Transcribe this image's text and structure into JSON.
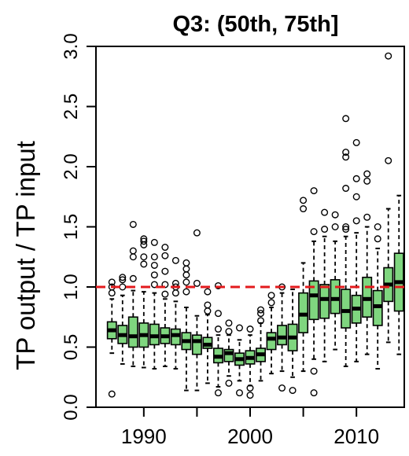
{
  "chart_data": {
    "type": "boxplot",
    "title": "Q3: (50th, 75th]",
    "xlabel": "",
    "ylabel": "TP output / TP input",
    "x_ticks": [
      "1990",
      "2000",
      "2010"
    ],
    "y_ticks": [
      "0.0",
      "0.5",
      "1.0",
      "1.5",
      "2.0",
      "2.5",
      "3.0"
    ],
    "xlim": [
      1985.5,
      2014.5
    ],
    "ylim": [
      0,
      3
    ],
    "reference_line": {
      "y": 1.0,
      "color": "#e31a1c",
      "style": "dashed"
    },
    "box_fill": "#7fd67f",
    "grid": false,
    "boxes": [
      {
        "x": 1987,
        "q1": 0.57,
        "median": 0.64,
        "q3": 0.71,
        "low": 0.45,
        "high": 0.9,
        "outliers": [
          0.11,
          0.95,
          1.0,
          1.04
        ]
      },
      {
        "x": 1988,
        "q1": 0.53,
        "median": 0.6,
        "q3": 0.68,
        "low": 0.36,
        "high": 0.93,
        "outliers": [
          1.0,
          1.06,
          1.08
        ]
      },
      {
        "x": 1989,
        "q1": 0.5,
        "median": 0.59,
        "q3": 0.75,
        "low": 0.34,
        "high": 0.97,
        "outliers": [
          1.07,
          1.25,
          1.3,
          1.52
        ]
      },
      {
        "x": 1990,
        "q1": 0.5,
        "median": 0.6,
        "q3": 0.7,
        "low": 0.33,
        "high": 0.96,
        "outliers": [
          1.19,
          1.25,
          1.35,
          1.38,
          1.4
        ]
      },
      {
        "x": 1991,
        "q1": 0.52,
        "median": 0.59,
        "q3": 0.69,
        "low": 0.32,
        "high": 0.95,
        "outliers": [
          1.02,
          1.1,
          1.18,
          1.25,
          1.37
        ]
      },
      {
        "x": 1992,
        "q1": 0.53,
        "median": 0.59,
        "q3": 0.66,
        "low": 0.34,
        "high": 0.9,
        "outliers": [
          0.94,
          1.02,
          1.13,
          1.26,
          1.33
        ]
      },
      {
        "x": 1993,
        "q1": 0.52,
        "median": 0.6,
        "q3": 0.65,
        "low": 0.32,
        "high": 0.88,
        "outliers": [
          0.95,
          1.0,
          1.03,
          1.22
        ]
      },
      {
        "x": 1994,
        "q1": 0.48,
        "median": 0.55,
        "q3": 0.62,
        "low": 0.14,
        "high": 0.83,
        "outliers": [
          0.96,
          1.04,
          1.1,
          1.15,
          1.2
        ]
      },
      {
        "x": 1995,
        "q1": 0.44,
        "median": 0.55,
        "q3": 0.6,
        "low": 0.14,
        "high": 0.76,
        "outliers": [
          1.03,
          1.45
        ]
      },
      {
        "x": 1996,
        "q1": 0.49,
        "median": 0.52,
        "q3": 0.58,
        "low": 0.2,
        "high": 0.77,
        "outliers": [
          0.8,
          0.85,
          0.96
        ]
      },
      {
        "x": 1997,
        "q1": 0.37,
        "median": 0.42,
        "q3": 0.49,
        "low": 0.17,
        "high": 0.6,
        "outliers": [
          0.12,
          0.65,
          0.78,
          1.01
        ]
      },
      {
        "x": 1998,
        "q1": 0.38,
        "median": 0.45,
        "q3": 0.48,
        "low": 0.26,
        "high": 0.6,
        "outliers": [
          0.2,
          0.63,
          0.7
        ]
      },
      {
        "x": 1999,
        "q1": 0.35,
        "median": 0.4,
        "q3": 0.45,
        "low": 0.22,
        "high": 0.56,
        "outliers": [
          0.12,
          0.66
        ]
      },
      {
        "x": 2000,
        "q1": 0.36,
        "median": 0.41,
        "q3": 0.47,
        "low": 0.18,
        "high": 0.6,
        "outliers": [
          0.1,
          0.16,
          0.65
        ]
      },
      {
        "x": 2001,
        "q1": 0.38,
        "median": 0.44,
        "q3": 0.49,
        "low": 0.22,
        "high": 0.7,
        "outliers": [
          0.72,
          0.78,
          0.81
        ]
      },
      {
        "x": 2002,
        "q1": 0.48,
        "median": 0.57,
        "q3": 0.62,
        "low": 0.28,
        "high": 0.83,
        "outliers": [
          0.87,
          0.93
        ]
      },
      {
        "x": 2003,
        "q1": 0.52,
        "median": 0.58,
        "q3": 0.68,
        "low": 0.3,
        "high": 0.95,
        "outliers": [
          0.16,
          1.0
        ]
      },
      {
        "x": 2004,
        "q1": 0.47,
        "median": 0.58,
        "q3": 0.69,
        "low": 0.25,
        "high": 0.98,
        "outliers": [
          0.14
        ]
      },
      {
        "x": 2005,
        "q1": 0.62,
        "median": 0.77,
        "q3": 0.95,
        "low": 0.3,
        "high": 1.2,
        "outliers": [
          1.65,
          1.72
        ]
      },
      {
        "x": 2006,
        "q1": 0.73,
        "median": 0.93,
        "q3": 1.05,
        "low": 0.4,
        "high": 1.38,
        "outliers": [
          0.12,
          0.3,
          1.46,
          1.8
        ]
      },
      {
        "x": 2007,
        "q1": 0.74,
        "median": 0.9,
        "q3": 1.02,
        "low": 0.38,
        "high": 1.42,
        "outliers": [
          1.48,
          1.62
        ]
      },
      {
        "x": 2008,
        "q1": 0.78,
        "median": 0.9,
        "q3": 1.06,
        "low": 0.48,
        "high": 1.38,
        "outliers": [
          1.5,
          1.6
        ]
      },
      {
        "x": 2009,
        "q1": 0.66,
        "median": 0.8,
        "q3": 0.98,
        "low": 0.34,
        "high": 1.42,
        "outliers": [
          1.48,
          1.5,
          1.82,
          2.08,
          2.12,
          2.4
        ]
      },
      {
        "x": 2010,
        "q1": 0.7,
        "median": 0.82,
        "q3": 0.93,
        "low": 0.38,
        "high": 1.45,
        "outliers": [
          1.55,
          1.75,
          1.9,
          2.2
        ]
      },
      {
        "x": 2011,
        "q1": 0.75,
        "median": 0.9,
        "q3": 1.08,
        "low": 0.44,
        "high": 1.5,
        "outliers": [
          1.58,
          1.88,
          1.94
        ]
      },
      {
        "x": 2012,
        "q1": 0.68,
        "median": 0.84,
        "q3": 0.97,
        "low": 0.32,
        "high": 1.32,
        "outliers": [
          1.4,
          1.5
        ]
      },
      {
        "x": 2013,
        "q1": 0.88,
        "median": 1.02,
        "q3": 1.16,
        "low": 0.54,
        "high": 1.65,
        "outliers": [
          2.05,
          2.92
        ]
      },
      {
        "x": 2014,
        "q1": 0.8,
        "median": 1.04,
        "q3": 1.28,
        "low": 0.44,
        "high": 1.76,
        "outliers": []
      }
    ]
  }
}
